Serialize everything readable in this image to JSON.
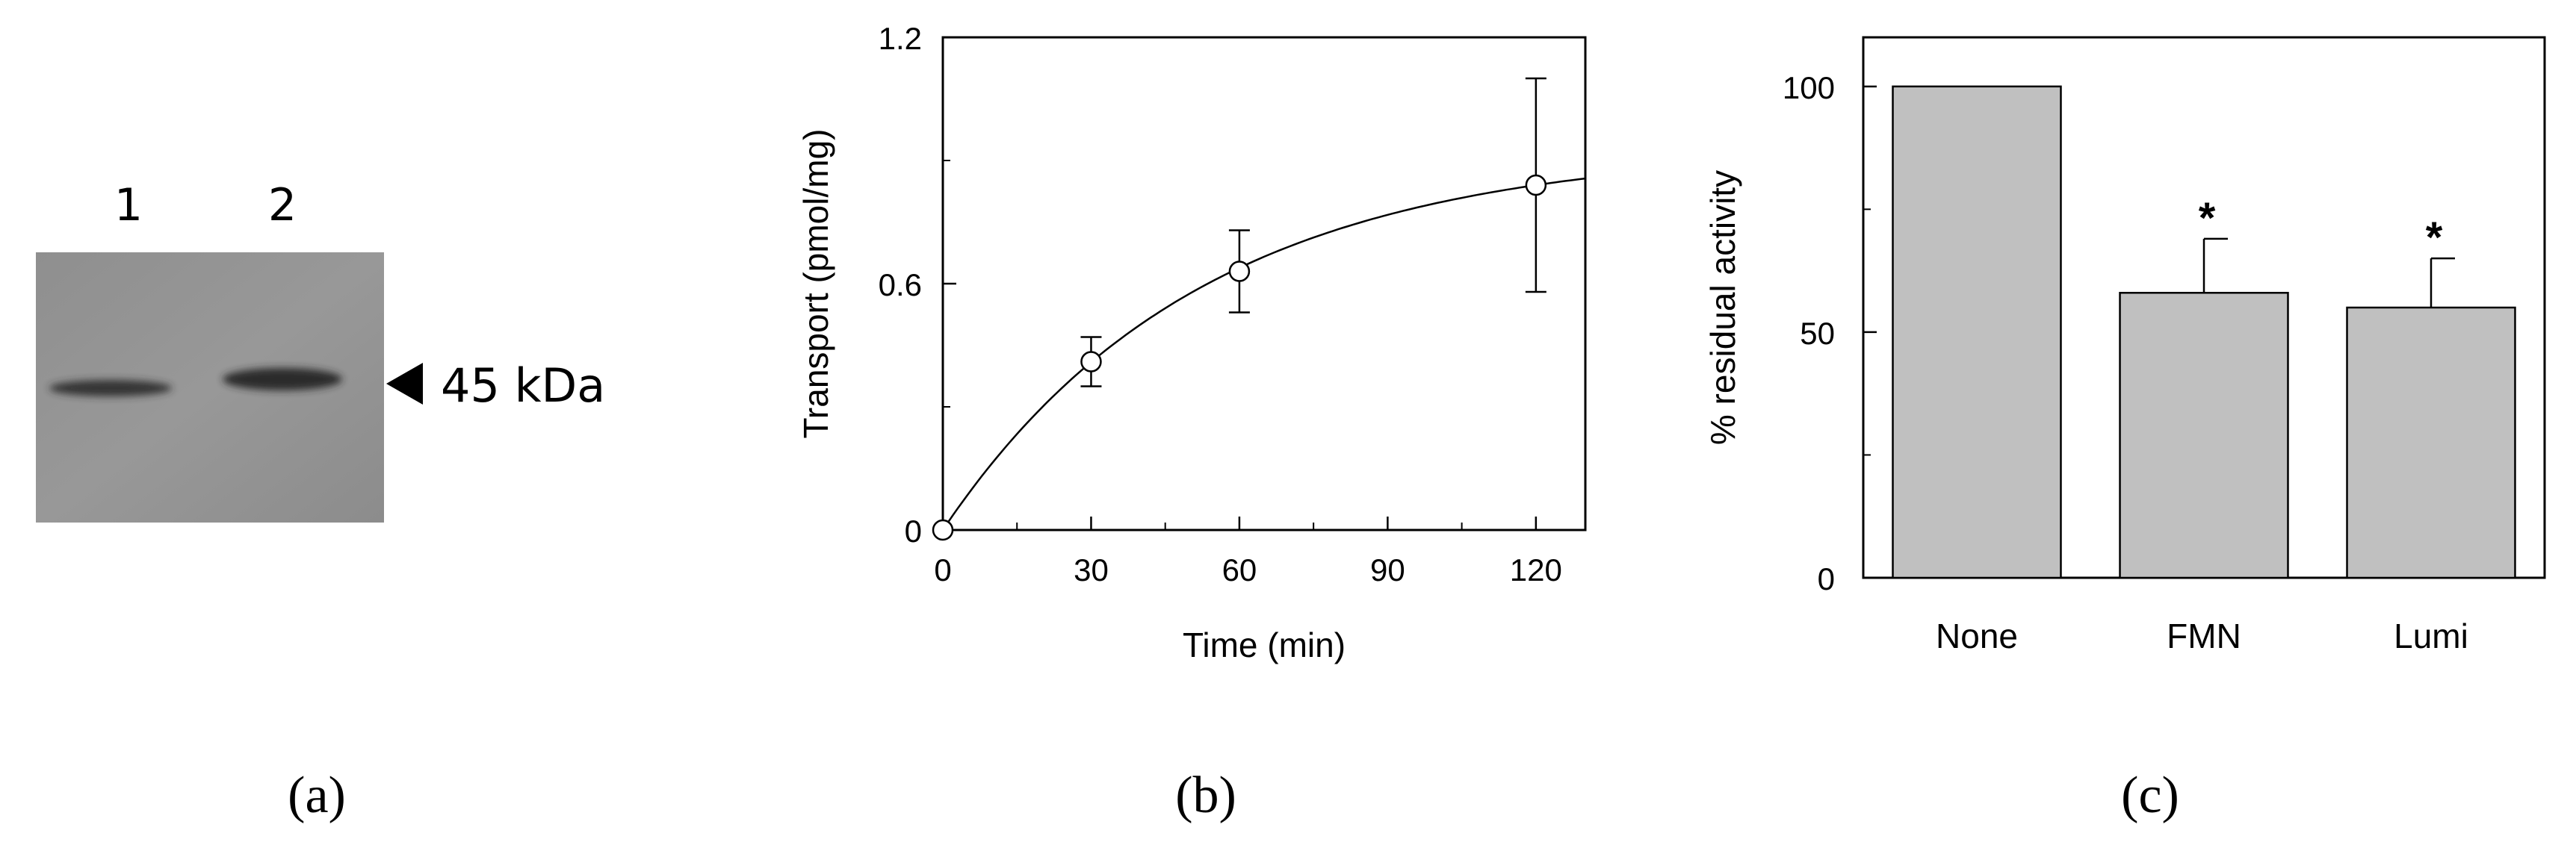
{
  "panel_a": {
    "lane_labels": [
      "1",
      "2"
    ],
    "marker_label": "45 kDa",
    "caption": "(a)"
  },
  "panel_b": {
    "caption": "(b)"
  },
  "panel_c": {
    "caption": "(c)"
  },
  "chart_data": [
    {
      "type": "line",
      "panel": "b",
      "title": "",
      "xlabel": "Time (min)",
      "ylabel": "Transport (pmol/mg)",
      "xlim": [
        0,
        130
      ],
      "ylim": [
        0,
        1.2
      ],
      "x_ticks": [
        0,
        30,
        60,
        90,
        120
      ],
      "y_ticks": [
        0,
        0.6,
        1.2
      ],
      "y_tick_labels": [
        "0",
        "0.6",
        "1.2"
      ],
      "series": [
        {
          "name": "Transport",
          "x": [
            0,
            30,
            60,
            120
          ],
          "y": [
            0,
            0.41,
            0.63,
            0.84
          ],
          "error": [
            0,
            0.06,
            0.1,
            0.26
          ],
          "marker": "open-circle",
          "fit": "first-order exponential"
        }
      ]
    },
    {
      "type": "bar",
      "panel": "c",
      "title": "",
      "xlabel": "",
      "ylabel": "% residual activity",
      "ylim": [
        0,
        110
      ],
      "y_ticks": [
        0,
        50,
        100
      ],
      "y_tick_labels": [
        "0",
        "50",
        "100"
      ],
      "categories": [
        "None",
        "FMN",
        "Lumi"
      ],
      "values": [
        100,
        58,
        55
      ],
      "error": [
        0,
        11,
        10
      ],
      "significance": [
        "",
        "*",
        "*"
      ],
      "bar_color": "#c0c0c0"
    }
  ]
}
